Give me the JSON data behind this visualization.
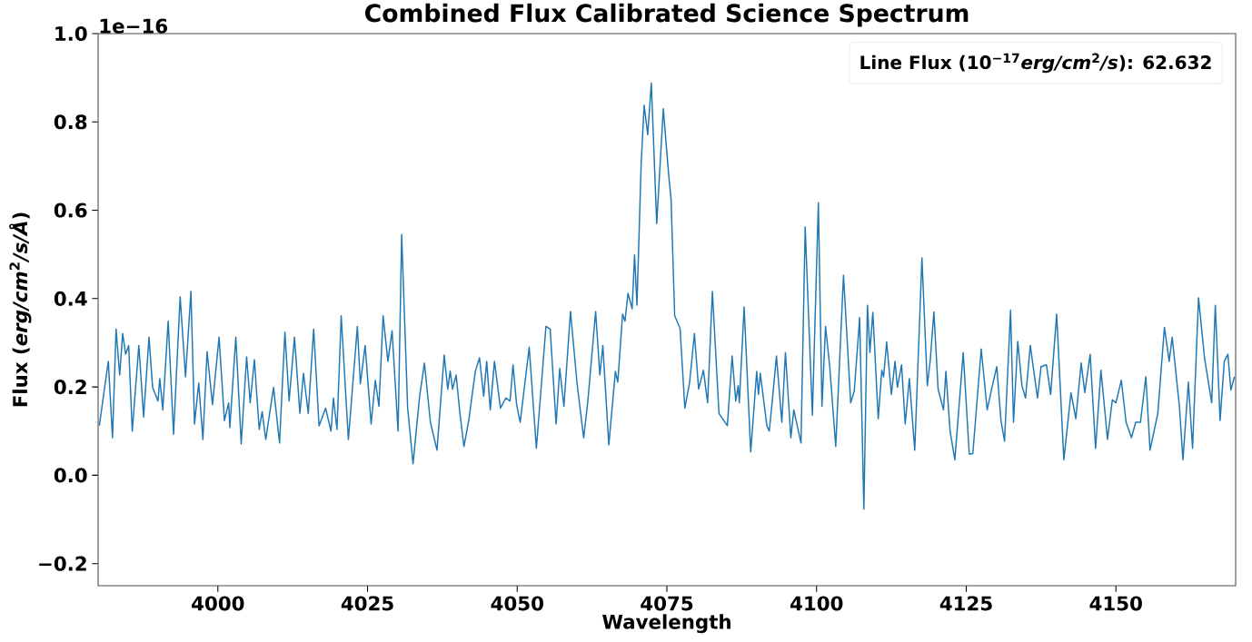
{
  "chart_data": {
    "type": "line",
    "title": "Combined Flux Calibrated Science Spectrum",
    "xlabel": "Wavelength",
    "ylabel": "Flux (*erg/cm*$^{2}$*/s/Å*)",
    "annotations": [
      "1e−16",
      "Line Flux (10$^{−17}$*erg/cm*$^{2}$*/s*): 62.632"
    ],
    "xlim": [
      3980,
      4170
    ],
    "ylim": [
      -0.25,
      1.0
    ],
    "xticks": [
      4000,
      4025,
      4050,
      4075,
      4100,
      4125,
      4150
    ],
    "yticks": [
      {
        "value": -0.2,
        "label": "−0.2"
      },
      {
        "value": 0,
        "label": "0.0"
      },
      {
        "value": 0.2,
        "label": "0.2"
      },
      {
        "value": 0.4,
        "label": "0.4"
      },
      {
        "value": 0.6,
        "label": "0.6"
      },
      {
        "value": 0.8,
        "label": "0.8"
      },
      {
        "value": 1.0,
        "label": "1.0"
      }
    ],
    "series": [
      {
        "color": "#1f77b4",
        "x": [
          3980.2,
          3981.7,
          3982.4,
          3983.0,
          3983.6,
          3984.1,
          3984.6,
          3985.1,
          3985.7,
          3986.8,
          3987.6,
          3988.5,
          3989.1,
          3990.0,
          3990.3,
          3990.8,
          3991.7,
          3992.6,
          3993.7,
          3994.6,
          3995.5,
          3996.1,
          3996.8,
          3997.5,
          3998.2,
          3999.1,
          4000.2,
          4001.1,
          4001.8,
          4002.0,
          4003.0,
          4003.9,
          4004.8,
          4005.4,
          4006.1,
          4006.9,
          4007.4,
          4008.0,
          4009.3,
          4010.3,
          4011.2,
          4011.9,
          4012.8,
          4013.7,
          4014.3,
          4015.1,
          4016.0,
          4016.9,
          4018.0,
          4018.9,
          4019.3,
          4019.9,
          4020.6,
          4021.8,
          4023.3,
          4023.8,
          4024.6,
          4025.6,
          4026.3,
          4026.9,
          4027.6,
          4028.4,
          4029.1,
          4030.1,
          4030.7,
          4031.7,
          4032.6,
          4033.7,
          4034.5,
          4035.5,
          4036.6,
          4037.8,
          4038.4,
          4038.8,
          4039.2,
          4039.8,
          4040.4,
          4041.1,
          4041.9,
          4043.0,
          4043.7,
          4044.4,
          4044.9,
          4045.5,
          4046.2,
          4047.2,
          4048.1,
          4048.8,
          4049.3,
          4049.9,
          4050.5,
          4052.0,
          4053.2,
          4054.8,
          4055.5,
          4056.5,
          4057.1,
          4057.8,
          4058.9,
          4060.0,
          4061.1,
          4061.8,
          4063.1,
          4063.8,
          4064.3,
          4065.3,
          4066.4,
          4066.8,
          4067.6,
          4068.0,
          4068.5,
          4069.2,
          4069.6,
          4070.0,
          4070.7,
          4071.2,
          4071.8,
          4072.4,
          4073.3,
          4074.4,
          4075.3,
          4075.7,
          4076.3,
          4077.2,
          4078.0,
          4078.8,
          4079.6,
          4080.3,
          4081.1,
          4081.8,
          4082.6,
          4083.7,
          4085.1,
          4085.9,
          4086.5,
          4086.9,
          4087.1,
          4087.9,
          4089.0,
          4090.0,
          4090.3,
          4090.6,
          4091.7,
          4092.1,
          4092.6,
          4093.3,
          4094.2,
          4094.8,
          4095.7,
          4096.2,
          4097.4,
          4098.1,
          4099.3,
          4100.3,
          4100.9,
          4101.5,
          4102.2,
          4103.2,
          4104.5,
          4105.7,
          4106.3,
          4107.2,
          4107.9,
          4108.5,
          4108.9,
          4109.4,
          4110.3,
          4110.9,
          4111.2,
          4111.7,
          4112.5,
          4113.1,
          4113.5,
          4114.2,
          4114.8,
          4115.5,
          4116.4,
          4117.6,
          4118.5,
          4119.0,
          4119.6,
          4120.3,
          4121.2,
          4121.6,
          4122.3,
          4123.1,
          4124.5,
          4125.5,
          4126.1,
          4127.5,
          4128.5,
          4129.3,
          4130.1,
          4130.8,
          4131.4,
          4132.4,
          4132.9,
          4133.6,
          4134.3,
          4134.9,
          4135.7,
          4136.9,
          4137.5,
          4138.4,
          4139.1,
          4140.1,
          4141.3,
          4142.5,
          4143.3,
          4144.2,
          4144.8,
          4145.7,
          4146.6,
          4147.5,
          4148.6,
          4149.4,
          4150.0,
          4150.9,
          4151.7,
          4152.6,
          4153.3,
          4154.1,
          4155.0,
          4155.7,
          4157.0,
          4158.1,
          4158.9,
          4159.4,
          4160.6,
          4161.2,
          4162.1,
          4162.8,
          4163.8,
          4164.8,
          4166.0,
          4166.6,
          4167.4,
          4168.1,
          4168.7,
          4169.2,
          4169.8
        ],
        "values": [
          0.112,
          0.258,
          0.085,
          0.331,
          0.227,
          0.321,
          0.274,
          0.294,
          0.1,
          0.294,
          0.132,
          0.313,
          0.199,
          0.168,
          0.219,
          0.148,
          0.349,
          0.093,
          0.404,
          0.223,
          0.416,
          0.116,
          0.209,
          0.081,
          0.28,
          0.16,
          0.313,
          0.124,
          0.164,
          0.108,
          0.313,
          0.071,
          0.268,
          0.164,
          0.262,
          0.104,
          0.144,
          0.081,
          0.199,
          0.073,
          0.324,
          0.168,
          0.313,
          0.14,
          0.231,
          0.14,
          0.331,
          0.112,
          0.152,
          0.1,
          0.175,
          0.104,
          0.361,
          0.081,
          0.337,
          0.207,
          0.294,
          0.116,
          0.215,
          0.156,
          0.361,
          0.258,
          0.327,
          0.1,
          0.545,
          0.152,
          0.026,
          0.179,
          0.254,
          0.12,
          0.057,
          0.272,
          0.195,
          0.236,
          0.195,
          0.227,
          0.144,
          0.065,
          0.124,
          0.235,
          0.266,
          0.179,
          0.258,
          0.148,
          0.258,
          0.152,
          0.175,
          0.168,
          0.25,
          0.16,
          0.12,
          0.29,
          0.061,
          0.337,
          0.331,
          0.116,
          0.242,
          0.156,
          0.371,
          0.207,
          0.085,
          0.168,
          0.371,
          0.227,
          0.294,
          0.069,
          0.235,
          0.211,
          0.365,
          0.349,
          0.412,
          0.377,
          0.499,
          0.385,
          0.704,
          0.838,
          0.771,
          0.888,
          0.57,
          0.83,
          0.68,
          0.625,
          0.361,
          0.333,
          0.152,
          0.211,
          0.321,
          0.195,
          0.238,
          0.164,
          0.416,
          0.14,
          0.112,
          0.27,
          0.168,
          0.203,
          0.164,
          0.381,
          0.053,
          0.235,
          0.183,
          0.231,
          0.112,
          0.1,
          0.168,
          0.27,
          0.12,
          0.278,
          0.085,
          0.148,
          0.073,
          0.562,
          0.136,
          0.617,
          0.156,
          0.337,
          0.246,
          0.065,
          0.453,
          0.164,
          0.191,
          0.357,
          -0.077,
          0.385,
          0.278,
          0.369,
          0.128,
          0.238,
          0.223,
          0.302,
          0.183,
          0.258,
          0.199,
          0.25,
          0.116,
          0.219,
          0.057,
          0.492,
          0.203,
          0.262,
          0.37,
          0.195,
          0.148,
          0.235,
          0.1,
          0.035,
          0.278,
          0.048,
          0.049,
          0.286,
          0.148,
          0.199,
          0.246,
          0.124,
          0.077,
          0.374,
          0.12,
          0.303,
          0.203,
          0.175,
          0.294,
          0.175,
          0.246,
          0.25,
          0.183,
          0.365,
          0.035,
          0.187,
          0.128,
          0.254,
          0.187,
          0.274,
          0.061,
          0.238,
          0.081,
          0.171,
          0.164,
          0.215,
          0.12,
          0.085,
          0.12,
          0.12,
          0.223,
          0.057,
          0.14,
          0.335,
          0.258,
          0.313,
          0.156,
          0.035,
          0.211,
          0.061,
          0.402,
          0.266,
          0.164,
          0.385,
          0.124,
          0.258,
          0.274,
          0.193,
          0.223
        ]
      }
    ]
  }
}
